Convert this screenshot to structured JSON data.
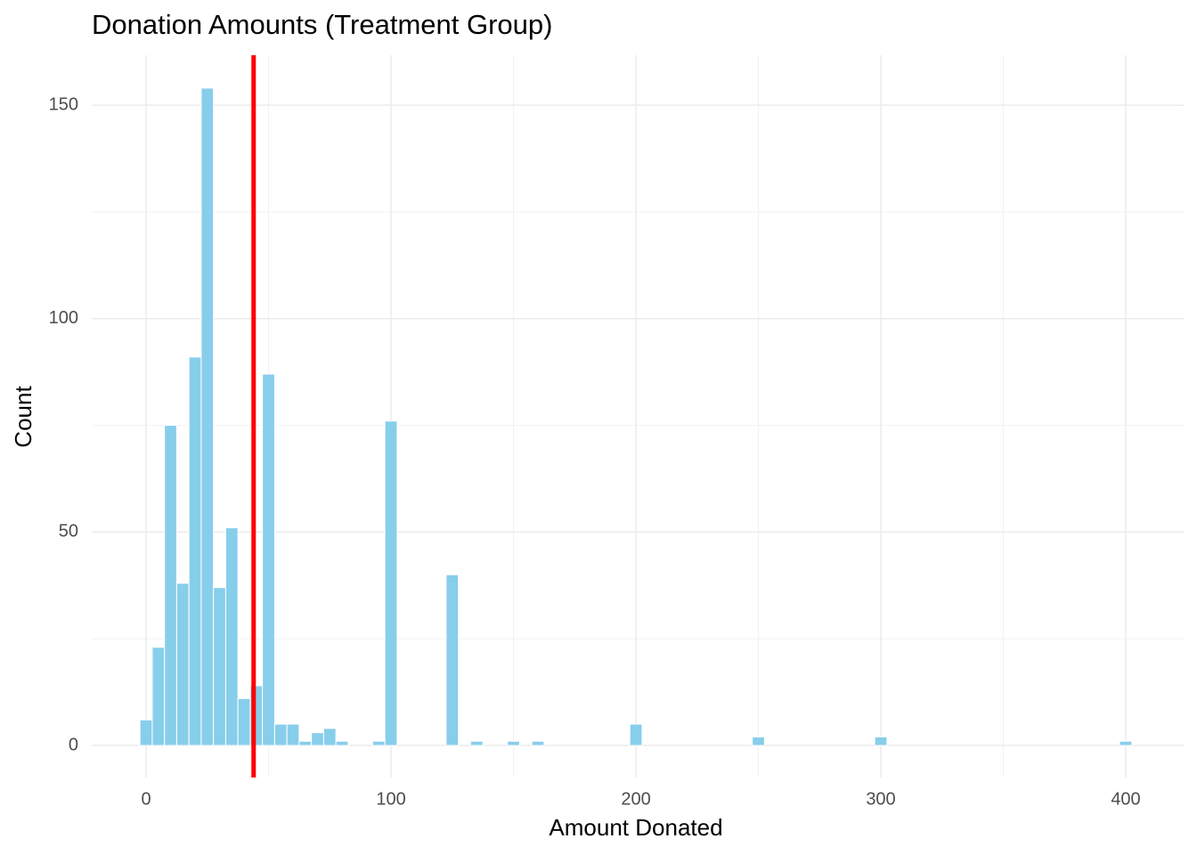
{
  "chart_data": {
    "type": "histogram",
    "title": "Donation Amounts (Treatment Group)",
    "x_label": "Amount Donated",
    "y_label": "Count",
    "bins": [
      -2.5,
      2.5,
      7.5,
      12.5,
      17.5,
      22.5,
      27.5,
      32.5,
      37.5,
      42.5,
      47.5,
      52.5,
      57.5,
      62.5,
      67.5,
      72.5,
      77.5,
      82.5,
      87.5,
      92.5,
      97.5,
      102.5,
      107.5,
      112.5,
      117.5,
      122.5,
      127.5,
      132.5,
      137.5,
      142.5,
      147.5,
      152.5,
      157.5,
      162.5,
      167.5,
      172.5,
      177.5,
      182.5,
      187.5,
      192.5,
      197.5,
      202.5,
      207.5,
      212.5,
      217.5,
      222.5,
      227.5,
      232.5,
      237.5,
      242.5,
      247.5,
      252.5,
      257.5,
      262.5,
      267.5,
      272.5,
      277.5,
      282.5,
      287.5,
      292.5,
      297.5,
      302.5,
      307.5,
      312.5,
      317.5,
      322.5,
      327.5,
      332.5,
      337.5,
      342.5,
      347.5,
      352.5,
      357.5,
      362.5,
      367.5,
      372.5,
      377.5,
      382.5,
      387.5,
      392.5,
      397.5,
      402.5
    ],
    "counts": [
      6,
      23,
      75,
      38,
      91,
      154,
      37,
      51,
      11,
      14,
      87,
      5,
      5,
      1,
      3,
      4,
      1,
      0,
      0,
      1,
      76,
      0,
      0,
      0,
      0,
      40,
      0,
      1,
      0,
      0,
      1,
      0,
      1,
      0,
      0,
      0,
      0,
      0,
      0,
      0,
      5,
      0,
      0,
      0,
      0,
      0,
      0,
      0,
      0,
      0,
      2,
      0,
      0,
      0,
      0,
      0,
      0,
      0,
      0,
      0,
      2,
      0,
      0,
      0,
      0,
      0,
      0,
      0,
      0,
      0,
      0,
      0,
      0,
      0,
      0,
      0,
      0,
      0,
      0,
      0,
      1
    ],
    "color": "#87ceeb",
    "vline": {
      "value": 43.9,
      "color": "#ff0000"
    },
    "xlim": [
      -22.2,
      424
    ],
    "ylim": [
      -7.5,
      161.7
    ],
    "xticks": [
      0,
      100,
      200,
      300,
      400
    ],
    "yticks": [
      0,
      50,
      100,
      150
    ],
    "grid": true
  }
}
